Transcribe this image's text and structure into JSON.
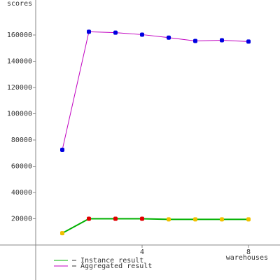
{
  "chart_data": {
    "type": "line",
    "y_label": "scores",
    "x_label": "warehouses",
    "x": [
      1,
      2,
      3,
      4,
      5,
      6,
      7,
      8
    ],
    "series": [
      {
        "name": "Instance result",
        "color": "#00b000",
        "marker_colors": [
          "#f0c000",
          "#e00000",
          "#e00000",
          "#e00000",
          "#f0c000",
          "#f0c000",
          "#f0c000",
          "#f0c000"
        ],
        "values": [
          9000,
          20000,
          20000,
          20000,
          19500,
          19500,
          19500,
          19500
        ]
      },
      {
        "name": "Aggregated result",
        "color": "#c000c0",
        "marker_color": "#0000e0",
        "values": [
          72500,
          162500,
          161800,
          160300,
          158000,
          155500,
          156000,
          155000
        ]
      }
    ],
    "xlim": [
      -1.342,
      9.184
    ],
    "xticks": [
      4,
      8
    ],
    "ylim": [
      -26667,
      186667
    ],
    "yticks": [
      20000,
      40000,
      60000,
      80000,
      100000,
      120000,
      140000,
      160000
    ],
    "legend": "bottom-left"
  }
}
